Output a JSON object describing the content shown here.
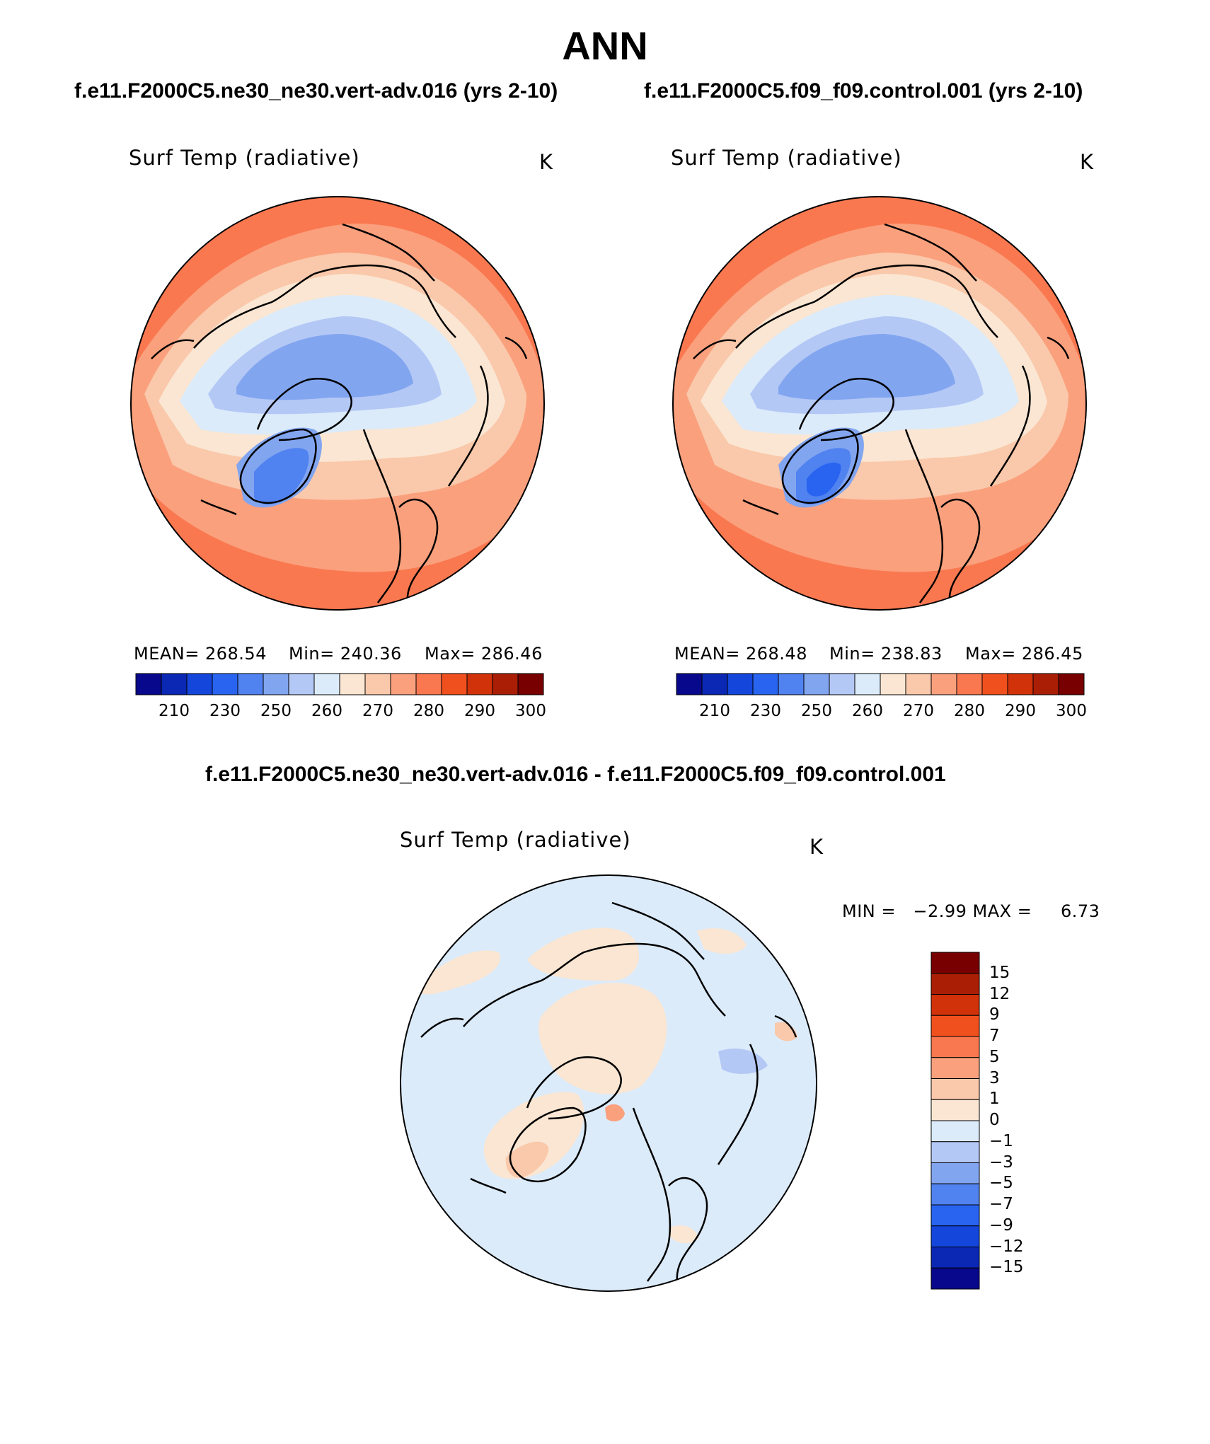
{
  "title": "ANN",
  "case1_title": "f.e11.F2000C5.ne30_ne30.vert-adv.016 (yrs 2-10)",
  "case2_title": "f.e11.F2000C5.f09_f09.control.001 (yrs 2-10)",
  "diff_title": "f.e11.F2000C5.ne30_ne30.vert-adv.016 - f.e11.F2000C5.f09_f09.control.001",
  "panels": [
    {
      "name": "Surf Temp (radiative)",
      "units": "K",
      "mean_text": "MEAN= 268.54",
      "min_text": "Min= 240.36",
      "max_text": "Max= 286.46"
    },
    {
      "name": "Surf Temp (radiative)",
      "units": "K",
      "mean_text": "MEAN= 268.48",
      "min_text": "Min= 238.83",
      "max_text": "Max= 286.45"
    },
    {
      "name": "Surf Temp (radiative)",
      "units": "K",
      "minmax_text": "MIN =   −2.99 MAX =     6.73"
    }
  ],
  "abs_colorbar": {
    "labels": [
      "210",
      "230",
      "250",
      "260",
      "270",
      "280",
      "290",
      "300"
    ],
    "colors": [
      "#08088c",
      "#0a28b4",
      "#1446dc",
      "#2864f0",
      "#5082f0",
      "#82a5f0",
      "#b4c8f5",
      "#dcebfa",
      "#fae6d2",
      "#fac8aa",
      "#faa07d",
      "#fa7850",
      "#f0501e",
      "#d2320a",
      "#aa1e06",
      "#780000"
    ]
  },
  "diff_colorbar": {
    "labels": [
      "15",
      "12",
      "9",
      "7",
      "5",
      "3",
      "1",
      "0",
      "−1",
      "−3",
      "−5",
      "−7",
      "−9",
      "−12",
      "−15"
    ],
    "colors": [
      "#780000",
      "#aa1e06",
      "#d2320a",
      "#f0501e",
      "#fa7850",
      "#faa07d",
      "#fac8aa",
      "#fae6d2",
      "#dcebfa",
      "#b4c8f5",
      "#82a5f0",
      "#5082f0",
      "#2864f0",
      "#1446dc",
      "#0a28b4",
      "#08088c"
    ]
  }
}
